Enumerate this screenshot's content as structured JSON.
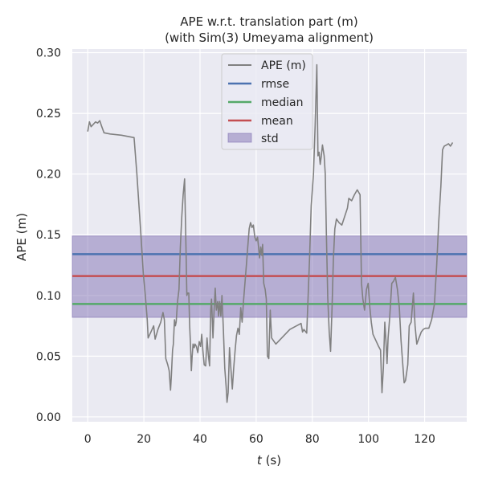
{
  "chart_data": {
    "type": "line",
    "title": "APE w.r.t. translation part (m)",
    "subtitle": "(with Sim(3) Umeyama alignment)",
    "xlabel_italic": "t",
    "xlabel_unit": " (s)",
    "ylabel": "APE (m)",
    "xlim": [
      -5.5,
      135
    ],
    "ylim": [
      -0.004,
      0.303
    ],
    "xticks": [
      0,
      20,
      40,
      60,
      80,
      100,
      120
    ],
    "xtick_labels": [
      "0",
      "20",
      "40",
      "60",
      "80",
      "100",
      "120"
    ],
    "yticks": [
      0.0,
      0.05,
      0.1,
      0.15,
      0.2,
      0.25,
      0.3
    ],
    "ytick_labels": [
      "0.00",
      "0.05",
      "0.10",
      "0.15",
      "0.20",
      "0.25",
      "0.30"
    ],
    "grid": true,
    "legend_position": "top-center",
    "colors": {
      "background": "#eaeaf2",
      "grid": "#ffffff",
      "ape": "#808080",
      "rmse": "#4c72b0",
      "median": "#55a868",
      "mean": "#c44e52",
      "std": "#8172b3"
    },
    "legend": [
      "APE (m)",
      "rmse",
      "median",
      "mean",
      "std"
    ],
    "stats": {
      "rmse": 0.134,
      "median": 0.093,
      "mean": 0.116,
      "std_low": 0.082,
      "std_high": 0.149
    },
    "series": [
      {
        "name": "APE (m)",
        "points": [
          [
            0.0,
            0.235
          ],
          [
            0.6,
            0.243
          ],
          [
            1.2,
            0.239
          ],
          [
            2.0,
            0.241
          ],
          [
            2.8,
            0.243
          ],
          [
            3.5,
            0.242
          ],
          [
            4.3,
            0.244
          ],
          [
            5.0,
            0.239
          ],
          [
            5.8,
            0.234
          ],
          [
            8.0,
            0.233
          ],
          [
            12.0,
            0.232
          ],
          [
            16.5,
            0.23
          ],
          [
            17.5,
            0.2
          ],
          [
            18.3,
            0.172
          ],
          [
            19.0,
            0.148
          ],
          [
            19.8,
            0.118
          ],
          [
            20.5,
            0.1
          ],
          [
            21.2,
            0.08
          ],
          [
            21.5,
            0.065
          ],
          [
            22.5,
            0.07
          ],
          [
            23.5,
            0.075
          ],
          [
            24.0,
            0.064
          ],
          [
            25.0,
            0.072
          ],
          [
            26.0,
            0.078
          ],
          [
            26.8,
            0.086
          ],
          [
            27.3,
            0.08
          ],
          [
            27.8,
            0.048
          ],
          [
            28.5,
            0.043
          ],
          [
            29.0,
            0.038
          ],
          [
            29.5,
            0.022
          ],
          [
            29.8,
            0.035
          ],
          [
            30.2,
            0.055
          ],
          [
            30.5,
            0.06
          ],
          [
            30.9,
            0.08
          ],
          [
            31.2,
            0.075
          ],
          [
            31.5,
            0.078
          ],
          [
            32.0,
            0.095
          ],
          [
            32.5,
            0.105
          ],
          [
            33.0,
            0.14
          ],
          [
            33.5,
            0.165
          ],
          [
            34.0,
            0.183
          ],
          [
            34.5,
            0.196
          ],
          [
            35.0,
            0.14
          ],
          [
            35.3,
            0.1
          ],
          [
            35.6,
            0.102
          ],
          [
            36.0,
            0.102
          ],
          [
            36.3,
            0.075
          ],
          [
            36.6,
            0.06
          ],
          [
            36.9,
            0.038
          ],
          [
            37.2,
            0.05
          ],
          [
            37.5,
            0.06
          ],
          [
            37.9,
            0.057
          ],
          [
            38.2,
            0.06
          ],
          [
            38.7,
            0.058
          ],
          [
            39.2,
            0.053
          ],
          [
            39.7,
            0.062
          ],
          [
            40.2,
            0.058
          ],
          [
            40.6,
            0.068
          ],
          [
            41.0,
            0.055
          ],
          [
            41.5,
            0.043
          ],
          [
            42.0,
            0.042
          ],
          [
            42.5,
            0.065
          ],
          [
            43.0,
            0.05
          ],
          [
            43.4,
            0.042
          ],
          [
            43.8,
            0.088
          ],
          [
            44.1,
            0.097
          ],
          [
            44.6,
            0.065
          ],
          [
            45.0,
            0.088
          ],
          [
            45.4,
            0.106
          ],
          [
            45.8,
            0.088
          ],
          [
            46.3,
            0.095
          ],
          [
            46.6,
            0.083
          ],
          [
            47.0,
            0.095
          ],
          [
            47.4,
            0.083
          ],
          [
            47.8,
            0.1
          ],
          [
            48.3,
            0.073
          ],
          [
            48.8,
            0.04
          ],
          [
            49.3,
            0.025
          ],
          [
            49.6,
            0.012
          ],
          [
            50.0,
            0.02
          ],
          [
            50.5,
            0.057
          ],
          [
            51.0,
            0.04
          ],
          [
            51.5,
            0.023
          ],
          [
            52.0,
            0.04
          ],
          [
            52.5,
            0.055
          ],
          [
            53.0,
            0.067
          ],
          [
            53.5,
            0.073
          ],
          [
            54.0,
            0.068
          ],
          [
            54.5,
            0.09
          ],
          [
            55.0,
            0.078
          ],
          [
            55.5,
            0.096
          ],
          [
            56.0,
            0.11
          ],
          [
            56.5,
            0.125
          ],
          [
            57.0,
            0.14
          ],
          [
            57.5,
            0.155
          ],
          [
            58.0,
            0.16
          ],
          [
            58.5,
            0.156
          ],
          [
            59.0,
            0.158
          ],
          [
            59.5,
            0.148
          ],
          [
            60.0,
            0.145
          ],
          [
            60.5,
            0.148
          ],
          [
            60.8,
            0.141
          ],
          [
            61.2,
            0.131
          ],
          [
            61.6,
            0.14
          ],
          [
            62.0,
            0.133
          ],
          [
            62.3,
            0.142
          ],
          [
            62.7,
            0.11
          ],
          [
            63.2,
            0.105
          ],
          [
            63.6,
            0.097
          ],
          [
            64.0,
            0.05
          ],
          [
            64.5,
            0.048
          ],
          [
            65.0,
            0.088
          ],
          [
            65.5,
            0.065
          ],
          [
            67.0,
            0.06
          ],
          [
            72.0,
            0.072
          ],
          [
            76.0,
            0.077
          ],
          [
            76.5,
            0.07
          ],
          [
            77.0,
            0.072
          ],
          [
            78.0,
            0.069
          ],
          [
            78.5,
            0.1
          ],
          [
            79.0,
            0.13
          ],
          [
            79.6,
            0.174
          ],
          [
            80.4,
            0.2
          ],
          [
            81.0,
            0.24
          ],
          [
            81.6,
            0.29
          ],
          [
            82.0,
            0.215
          ],
          [
            82.4,
            0.218
          ],
          [
            82.8,
            0.208
          ],
          [
            83.2,
            0.215
          ],
          [
            83.6,
            0.224
          ],
          [
            84.2,
            0.215
          ],
          [
            84.6,
            0.2
          ],
          [
            85.0,
            0.15
          ],
          [
            85.5,
            0.098
          ],
          [
            86.0,
            0.07
          ],
          [
            86.5,
            0.054
          ],
          [
            87.0,
            0.089
          ],
          [
            87.5,
            0.13
          ],
          [
            88.0,
            0.155
          ],
          [
            88.6,
            0.163
          ],
          [
            89.5,
            0.16
          ],
          [
            90.5,
            0.158
          ],
          [
            91.5,
            0.165
          ],
          [
            92.5,
            0.172
          ],
          [
            93.0,
            0.18
          ],
          [
            94.0,
            0.178
          ],
          [
            95.0,
            0.183
          ],
          [
            96.0,
            0.187
          ],
          [
            97.0,
            0.183
          ],
          [
            97.5,
            0.11
          ],
          [
            98.0,
            0.097
          ],
          [
            98.6,
            0.088
          ],
          [
            99.3,
            0.105
          ],
          [
            99.9,
            0.11
          ],
          [
            100.5,
            0.09
          ],
          [
            101.0,
            0.078
          ],
          [
            101.6,
            0.068
          ],
          [
            102.8,
            0.062
          ],
          [
            103.6,
            0.058
          ],
          [
            104.3,
            0.055
          ],
          [
            104.8,
            0.02
          ],
          [
            105.3,
            0.04
          ],
          [
            105.8,
            0.078
          ],
          [
            106.2,
            0.063
          ],
          [
            106.6,
            0.044
          ],
          [
            107.0,
            0.065
          ],
          [
            107.5,
            0.08
          ],
          [
            108.3,
            0.11
          ],
          [
            109.0,
            0.112
          ],
          [
            109.6,
            0.115
          ],
          [
            110.3,
            0.105
          ],
          [
            111.0,
            0.09
          ],
          [
            111.6,
            0.063
          ],
          [
            112.2,
            0.044
          ],
          [
            112.7,
            0.028
          ],
          [
            113.2,
            0.03
          ],
          [
            114.0,
            0.043
          ],
          [
            114.5,
            0.075
          ],
          [
            115.2,
            0.078
          ],
          [
            116.0,
            0.102
          ],
          [
            116.6,
            0.075
          ],
          [
            117.2,
            0.06
          ],
          [
            118.0,
            0.065
          ],
          [
            118.8,
            0.07
          ],
          [
            119.5,
            0.072
          ],
          [
            120.3,
            0.073
          ],
          [
            121.5,
            0.073
          ],
          [
            122.5,
            0.08
          ],
          [
            123.5,
            0.093
          ],
          [
            124.3,
            0.125
          ],
          [
            125.0,
            0.16
          ],
          [
            125.8,
            0.19
          ],
          [
            126.4,
            0.22
          ],
          [
            127.0,
            0.223
          ],
          [
            127.8,
            0.224
          ],
          [
            128.5,
            0.225
          ],
          [
            129.2,
            0.223
          ],
          [
            130.0,
            0.226
          ]
        ]
      }
    ]
  }
}
